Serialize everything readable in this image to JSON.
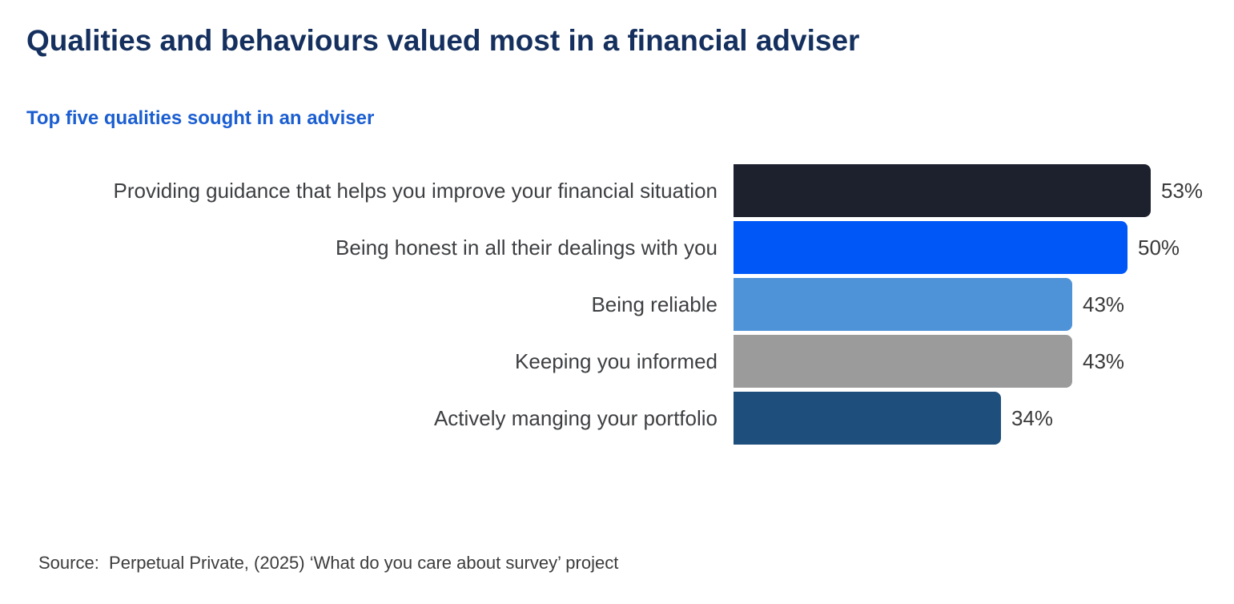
{
  "chart_data": {
    "type": "bar",
    "orientation": "horizontal",
    "title": "Qualities and behaviours valued most in a financial adviser",
    "subtitle": "Top five qualities sought in an adviser",
    "categories": [
      "Providing guidance that helps you improve your financial situation",
      "Being honest in all their dealings with you",
      "Being reliable",
      "Keeping you informed",
      "Actively manging your portfolio"
    ],
    "values": [
      53,
      50,
      43,
      43,
      34
    ],
    "value_suffix": "%",
    "value_labels": [
      "53%",
      "50%",
      "43%",
      "43%",
      "34%"
    ],
    "bar_colors": [
      "#1d212e",
      "#0057f8",
      "#4e92d8",
      "#9b9b9b",
      "#1e4e7c"
    ],
    "xlim": [
      0,
      53
    ],
    "grid": false,
    "legend": "none",
    "source": "Source:  Perpetual Private, (2025) ‘What do you care about survey’ project"
  },
  "colors": {
    "title_text": "#15305e",
    "subtitle_text": "#1b5ed1",
    "label_text": "#3d3f42",
    "value_text": "#3a3a3a",
    "background": "#ffffff"
  }
}
